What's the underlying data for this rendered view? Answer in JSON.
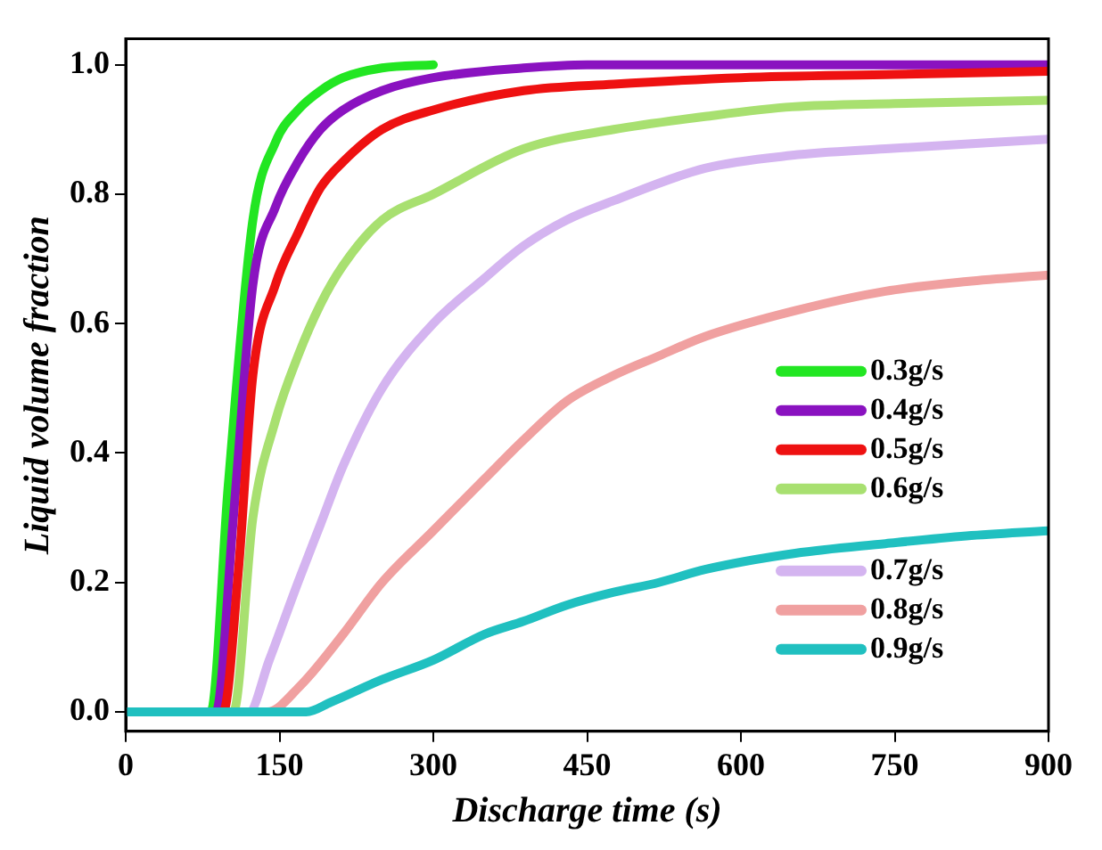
{
  "chart_data": {
    "type": "line",
    "xlabel": "Discharge time (s)",
    "ylabel": "Liquid volume fraction",
    "xlim": [
      0,
      900
    ],
    "xticks": [
      0,
      150,
      300,
      450,
      600,
      750,
      900
    ],
    "ylim": [
      -0.03,
      1.04
    ],
    "yticks": [
      {
        "value": 0,
        "label": "0.0"
      },
      {
        "value": 0.2,
        "label": "0.2"
      },
      {
        "value": 0.4,
        "label": "0.4"
      },
      {
        "value": 0.6,
        "label": "0.6"
      },
      {
        "value": 0.8,
        "label": "0.8"
      },
      {
        "value": 1,
        "label": "1.0"
      }
    ],
    "grid": false,
    "legend": "right",
    "marker": "none",
    "line_style": "solid",
    "series": [
      {
        "name": "0.3g/s",
        "color": "#22e622",
        "x": [
          0,
          83,
          100,
          124,
          146,
          168,
          190,
          212,
          250,
          300
        ],
        "values": [
          0,
          0,
          0.35,
          0.76,
          0.88,
          0.93,
          0.96,
          0.98,
          0.995,
          1
        ]
      },
      {
        "name": "0.4g/s",
        "color": "#8a12c0",
        "x": [
          0,
          88,
          105,
          124,
          146,
          168,
          190,
          212,
          250,
          300,
          388,
          450,
          600,
          750,
          900
        ],
        "values": [
          0,
          0,
          0.3,
          0.66,
          0.78,
          0.85,
          0.9,
          0.93,
          0.96,
          0.98,
          0.995,
          1,
          1,
          1,
          1
        ]
      },
      {
        "name": "0.5g/s",
        "color": "#ee1111",
        "x": [
          0,
          95,
          110,
          124,
          146,
          168,
          190,
          212,
          250,
          300,
          388,
          476,
          600,
          750,
          900
        ],
        "values": [
          0,
          0,
          0.22,
          0.52,
          0.66,
          0.74,
          0.81,
          0.85,
          0.9,
          0.93,
          0.96,
          0.97,
          0.98,
          0.985,
          0.99
        ]
      },
      {
        "name": "0.6g/s",
        "color": "#a8e070",
        "x": [
          0,
          105,
          124,
          146,
          168,
          190,
          212,
          250,
          300,
          388,
          476,
          565,
          650,
          750,
          900
        ],
        "values": [
          0,
          0,
          0.3,
          0.45,
          0.55,
          0.63,
          0.69,
          0.76,
          0.8,
          0.87,
          0.9,
          0.92,
          0.935,
          0.94,
          0.945
        ]
      },
      {
        "name": "0.7g/s",
        "color": "#d4b4f0",
        "x": [
          0,
          120,
          140,
          168,
          190,
          212,
          250,
          300,
          350,
          388,
          430,
          476,
          565,
          650,
          741,
          900
        ],
        "values": [
          0,
          0,
          0.08,
          0.2,
          0.29,
          0.38,
          0.5,
          0.6,
          0.67,
          0.72,
          0.76,
          0.79,
          0.84,
          0.86,
          0.87,
          0.885
        ]
      },
      {
        "name": "0.8g/s",
        "color": "#f0a0a0",
        "x": [
          0,
          138,
          170,
          212,
          250,
          300,
          350,
          388,
          430,
          476,
          520,
          565,
          653,
          741,
          820,
          900
        ],
        "values": [
          0,
          0,
          0.04,
          0.12,
          0.2,
          0.28,
          0.36,
          0.42,
          0.48,
          0.52,
          0.55,
          0.58,
          0.62,
          0.65,
          0.665,
          0.675
        ]
      },
      {
        "name": "0.9g/s",
        "color": "#20c0c0",
        "x": [
          0,
          176,
          200,
          250,
          300,
          350,
          388,
          430,
          476,
          520,
          565,
          653,
          741,
          820,
          900
        ],
        "values": [
          0,
          0,
          0.015,
          0.05,
          0.08,
          0.12,
          0.14,
          0.165,
          0.185,
          0.2,
          0.22,
          0.245,
          0.26,
          0.272,
          0.28
        ]
      }
    ]
  }
}
